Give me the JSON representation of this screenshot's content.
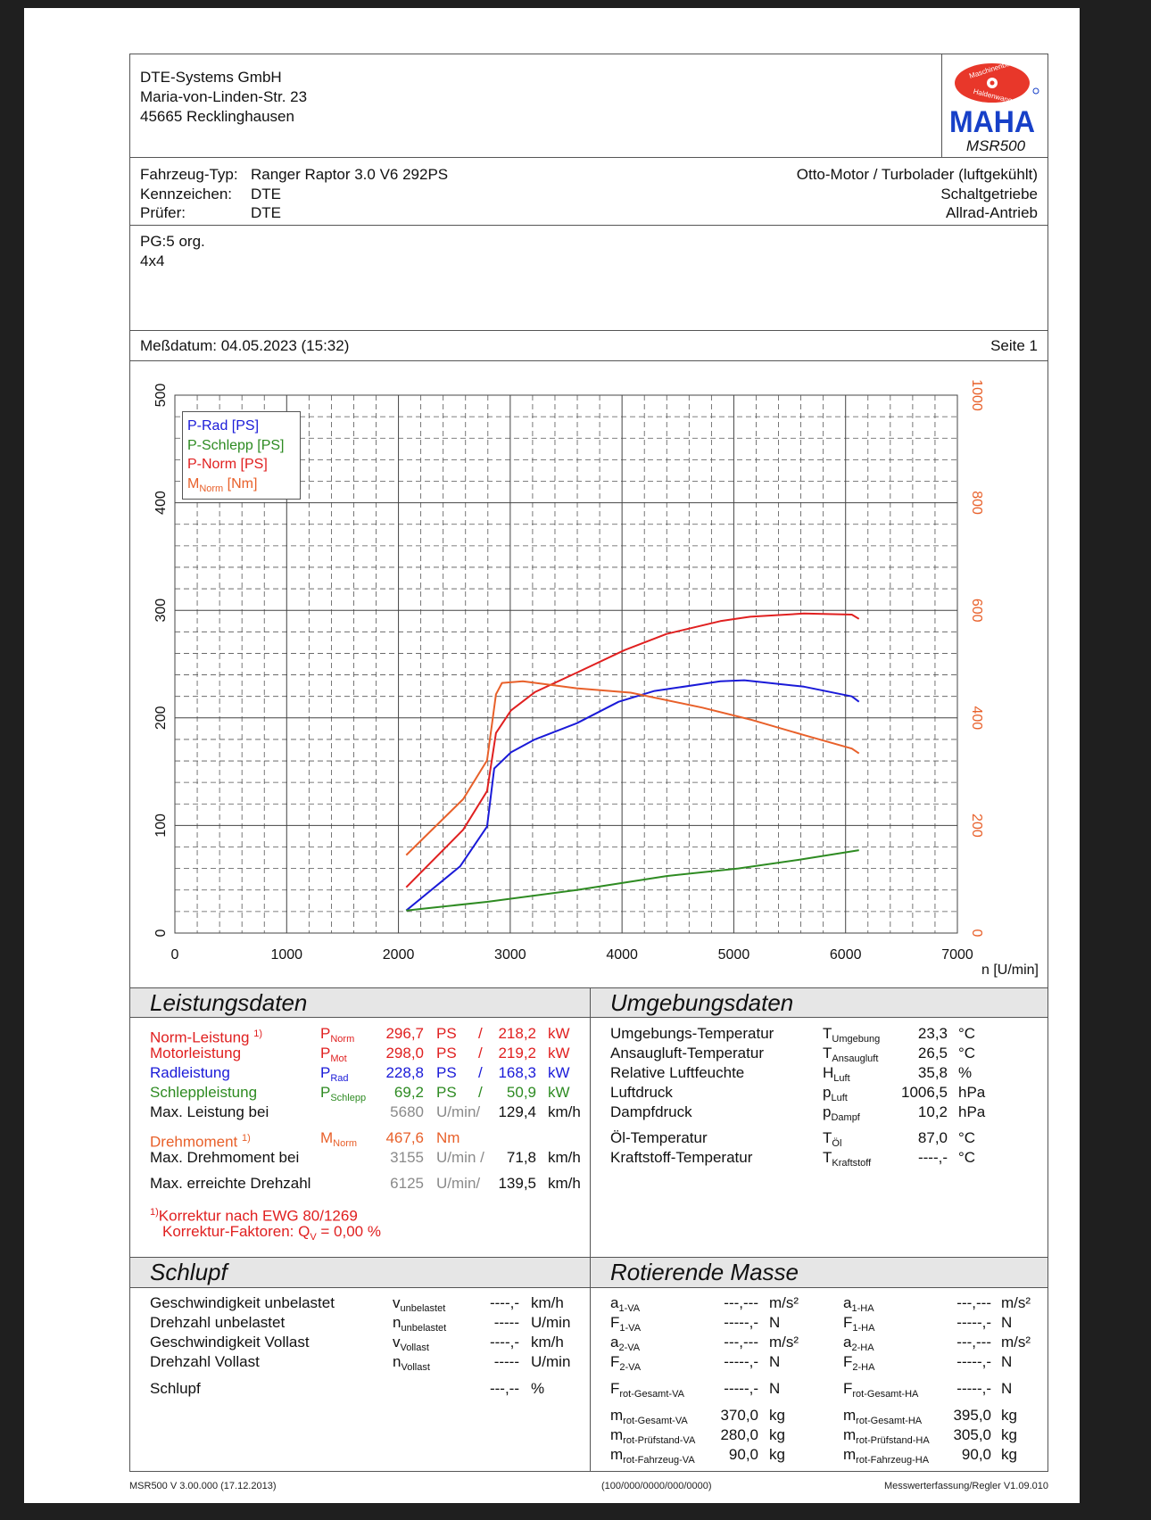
{
  "company": {
    "name": "DTE-Systems GmbH",
    "street": "Maria-von-Linden-Str. 23",
    "city": "45665 Recklinghausen"
  },
  "logo": {
    "brand": "MAHA",
    "ring_top": "Maschinenbau",
    "ring_bottom": "Haldenwang",
    "model": "MSR500"
  },
  "vehicle": {
    "type_label": "Fahrzeug-Typ:",
    "type_value": "Ranger Raptor 3.0 V6 292PS",
    "plate_label": "Kennzeichen:",
    "plate_value": "DTE",
    "tester_label": "Prüfer:",
    "tester_value": "DTE",
    "engine": "Otto-Motor / Turbolader (luftgekühlt)",
    "gearbox": "Schaltgetriebe",
    "drive": "Allrad-Antrieb"
  },
  "notes": {
    "line1": "PG:5 org.",
    "line2": "4x4"
  },
  "measurement": {
    "date": "Meßdatum: 04.05.2023 (15:32)",
    "page": "Seite 1"
  },
  "chart_data": {
    "type": "line",
    "xlabel": "n [U/min]",
    "xlim": [
      0,
      7000
    ],
    "ylim_left": [
      0,
      500
    ],
    "ylim_right": [
      0,
      1000
    ],
    "x_ticks": [
      "0",
      "1000",
      "2000",
      "3000",
      "4000",
      "5000",
      "6000",
      "7000"
    ],
    "y_left_ticks": [
      "0",
      "100",
      "200",
      "300",
      "400",
      "500"
    ],
    "y_right_ticks": [
      "0",
      "200",
      "400",
      "600",
      "800",
      "1000"
    ],
    "grid": true,
    "legend_position": "top-left",
    "series": [
      {
        "name": "P-Rad [PS]",
        "axis": "left",
        "color": "#1a1ad8",
        "x": [
          2070,
          2552,
          2793,
          2857,
          3007,
          3221,
          3595,
          3970,
          4290,
          4880,
          5094,
          5628,
          6056,
          6120
        ],
        "y": [
          21,
          62,
          99,
          153,
          168,
          180,
          195,
          215,
          225,
          234,
          235,
          229,
          220,
          215
        ]
      },
      {
        "name": "P-Schlepp [PS]",
        "axis": "left",
        "color": "#2e8b22",
        "x": [
          2070,
          2793,
          3595,
          4398,
          5040,
          5575,
          6120
        ],
        "y": [
          21,
          29,
          40,
          53,
          60,
          68,
          77
        ]
      },
      {
        "name": "P-Norm [PS]",
        "axis": "left",
        "color": "#e02020",
        "x": [
          2070,
          2579,
          2793,
          2873,
          3007,
          3221,
          3595,
          4023,
          4398,
          4880,
          5147,
          5628,
          6056,
          6120
        ],
        "y": [
          42.5,
          96,
          132,
          186,
          207,
          224,
          242,
          263,
          278,
          290,
          294,
          297,
          296,
          292
        ]
      },
      {
        "name": "M",
        "sub": "Norm",
        "unit": " [Nm]",
        "axis": "right",
        "color": "#e8602a",
        "x": [
          2070,
          2579,
          2793,
          2873,
          2926,
          3113,
          3595,
          4077,
          4719,
          5147,
          5628,
          6056,
          6120
        ],
        "y": [
          145,
          249,
          321,
          444,
          465,
          468,
          455,
          447,
          419,
          397,
          368,
          343,
          334
        ]
      }
    ]
  },
  "leistung": {
    "title": "Leistungsdaten",
    "rows": [
      {
        "label": "Norm-Leistung",
        "fn": "1)",
        "sym": "P",
        "sub": "Norm",
        "v1": "296,7",
        "u1": "PS",
        "sep": "/",
        "v2": "218,2",
        "u2": "kW"
      },
      {
        "label": "Motorleistung",
        "sym": "P",
        "sub": "Mot",
        "v1": "298,0",
        "u1": "PS",
        "sep": "/",
        "v2": "219,2",
        "u2": "kW"
      },
      {
        "label": "Radleistung",
        "sym": "P",
        "sub": "Rad",
        "v1": "228,8",
        "u1": "PS",
        "sep": "/",
        "v2": "168,3",
        "u2": "kW"
      },
      {
        "label": "Schleppleistung",
        "sym": "P",
        "sub": "Schlepp",
        "v1": "69,2",
        "u1": "PS",
        "sep": "/",
        "v2": "50,9",
        "u2": "kW"
      }
    ],
    "maxp": {
      "label": "Max. Leistung bei",
      "rpm": "5680",
      "u1": "U/min/",
      "v2": "129,4",
      "u2": "km/h"
    },
    "torque": {
      "label": "Drehmoment",
      "fn": "1)",
      "sym": "M",
      "sub": "Norm",
      "v1": "467,6",
      "u1": "Nm"
    },
    "maxm": {
      "label": "Max. Drehmoment bei",
      "rpm": "3155",
      "u1": "U/min /",
      "v2": "71,8",
      "u2": "km/h"
    },
    "maxn": {
      "label": "Max. erreichte Drehzahl",
      "rpm": "6125",
      "u1": "U/min/",
      "v2": "139,5",
      "u2": "km/h"
    },
    "note1_fn": "1)",
    "note1": "Korrektur nach EWG 80/1269",
    "note2": "Korrektur-Faktoren: Q",
    "note2_sub": "V",
    "note2_val": " =   0,00 %"
  },
  "umgebung": {
    "title": "Umgebungsdaten",
    "rows": [
      {
        "label": "Umgebungs-Temperatur",
        "sym": "T",
        "sub": "Umgebung",
        "v": "23,3",
        "u": "°C"
      },
      {
        "label": "Ansaugluft-Temperatur",
        "sym": "T",
        "sub": "Ansaugluft",
        "v": "26,5",
        "u": "°C"
      },
      {
        "label": "Relative Luftfeuchte",
        "sym": "H",
        "sub": "Luft",
        "v": "35,8",
        "u": "%"
      },
      {
        "label": "Luftdruck",
        "sym": "p",
        "sub": "Luft",
        "v": "1006,5",
        "u": "hPa"
      },
      {
        "label": "Dampfdruck",
        "sym": "p",
        "sub": "Dampf",
        "v": "10,2",
        "u": "hPa"
      },
      {
        "label": "Öl-Temperatur",
        "sym": "T",
        "sub": "Öl",
        "v": "87,0",
        "u": "°C"
      },
      {
        "label": "Kraftstoff-Temperatur",
        "sym": "T",
        "sub": "Kraftstoff",
        "v": "----,-",
        "u": "°C"
      }
    ]
  },
  "schlupf": {
    "title": "Schlupf",
    "rows": [
      {
        "label": "Geschwindigkeit unbelastet",
        "sym": "v",
        "sub": "unbelastet",
        "v": "----,-",
        "u": "km/h"
      },
      {
        "label": "Drehzahl unbelastet",
        "sym": "n",
        "sub": "unbelastet",
        "v": "-----",
        "u": "U/min"
      },
      {
        "label": "Geschwindigkeit Vollast",
        "sym": "v",
        "sub": "Vollast",
        "v": "----,-",
        "u": "km/h"
      },
      {
        "label": "Drehzahl Vollast",
        "sym": "n",
        "sub": "Vollast",
        "v": "-----",
        "u": "U/min"
      },
      {
        "label": "Schlupf",
        "sym": "",
        "sub": "",
        "v": "---,--",
        "u": "%"
      }
    ]
  },
  "rotierend": {
    "title": "Rotierende Masse",
    "va": [
      {
        "sym": "a",
        "sub": "1-VA",
        "v": "---,---",
        "u": "m/s²"
      },
      {
        "sym": "F",
        "sub": "1-VA",
        "v": "-----,-",
        "u": "N"
      },
      {
        "sym": "a",
        "sub": "2-VA",
        "v": "---,---",
        "u": "m/s²"
      },
      {
        "sym": "F",
        "sub": "2-VA",
        "v": "-----,-",
        "u": "N"
      },
      {
        "sym": "F",
        "sub": "rot-Gesamt-VA",
        "v": "-----,-",
        "u": "N"
      },
      {
        "sym": "m",
        "sub": "rot-Gesamt-VA",
        "v": "370,0",
        "u": "kg"
      },
      {
        "sym": "m",
        "sub": "rot-Prüfstand-VA",
        "v": "280,0",
        "u": "kg"
      },
      {
        "sym": "m",
        "sub": "rot-Fahrzeug-VA",
        "v": "90,0",
        "u": "kg"
      }
    ],
    "ha": [
      {
        "sym": "a",
        "sub": "1-HA",
        "v": "---,---",
        "u": "m/s²"
      },
      {
        "sym": "F",
        "sub": "1-HA",
        "v": "-----,-",
        "u": "N"
      },
      {
        "sym": "a",
        "sub": "2-HA",
        "v": "---,---",
        "u": "m/s²"
      },
      {
        "sym": "F",
        "sub": "2-HA",
        "v": "-----,-",
        "u": "N"
      },
      {
        "sym": "F",
        "sub": "rot-Gesamt-HA",
        "v": "-----,-",
        "u": "N"
      },
      {
        "sym": "m",
        "sub": "rot-Gesamt-HA",
        "v": "395,0",
        "u": "kg"
      },
      {
        "sym": "m",
        "sub": "rot-Prüfstand-HA",
        "v": "305,0",
        "u": "kg"
      },
      {
        "sym": "m",
        "sub": "rot-Fahrzeug-HA",
        "v": "90,0",
        "u": "kg"
      }
    ]
  },
  "footer": {
    "left": "MSR500 V 3.00.000 (17.12.2013)",
    "center": "(100/000/0000/000/0000)",
    "right": "Messwerterfassung/Regler V1.09.010"
  }
}
